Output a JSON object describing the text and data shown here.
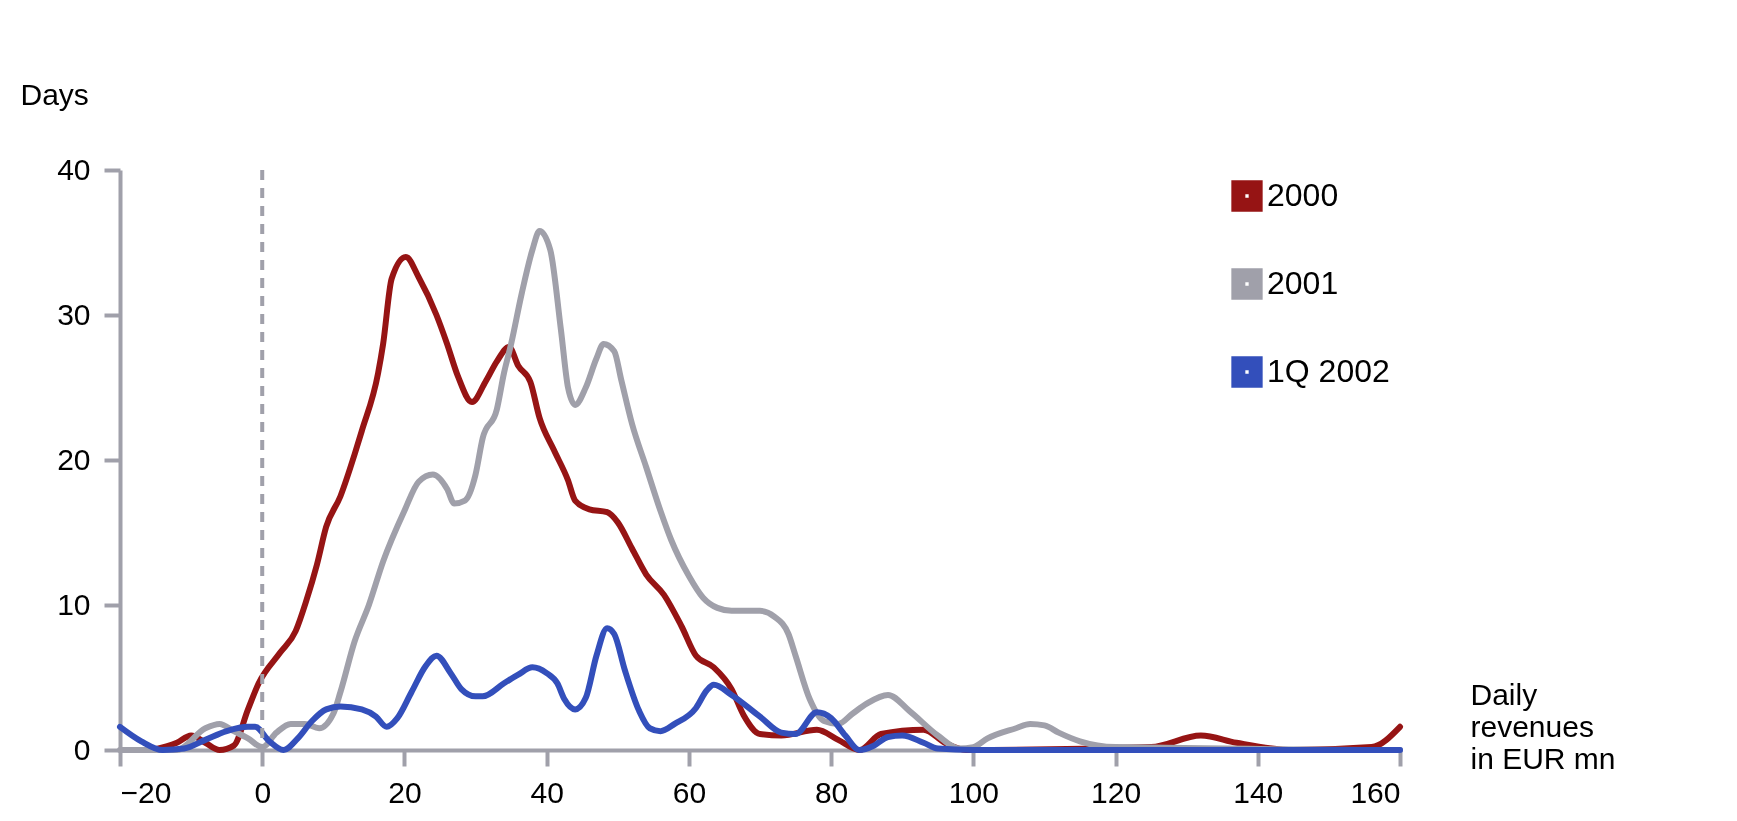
{
  "chart_data": {
    "type": "line",
    "ylabel": "Days",
    "xlabel": "Daily revenues in EUR mn",
    "xlim": [
      -20,
      160
    ],
    "xticks": [
      -20,
      0,
      20,
      40,
      60,
      80,
      100,
      120,
      140,
      160
    ],
    "ylim": [
      0,
      40
    ],
    "yticks": [
      0,
      10,
      20,
      30,
      40
    ],
    "grid": false,
    "legend": "top right",
    "marker": "none",
    "line_style": "solid",
    "ref_lines": [
      {
        "axis": "x",
        "value": 0,
        "color": "#a0a0aa",
        "line_style": "dashed"
      }
    ],
    "series": [
      {
        "name": "2000",
        "color": "#961414",
        "x": [
          -15.5,
          -12,
          -10,
          -8,
          -6,
          -4,
          -2,
          -0.5,
          2.5,
          4.7,
          6.2,
          7.7,
          9,
          11,
          13,
          14,
          16.3,
          17,
          18.2,
          20.2,
          22,
          24.5,
          26,
          27.5,
          29.5,
          31.4,
          33,
          34.7,
          36,
          37.7,
          39,
          41,
          43,
          44,
          46,
          48.5,
          50,
          52,
          54,
          56.5,
          59,
          61,
          63.5,
          66,
          67.7,
          70,
          73,
          78,
          81,
          84,
          87,
          93,
          96,
          99,
          125,
          132,
          137,
          145,
          156,
          160
        ],
        "values": [
          0,
          0.5,
          1,
          0.5,
          0,
          0.3,
          2.8,
          4.6,
          6.7,
          8.2,
          10.3,
          12.8,
          15.4,
          17.5,
          20.4,
          22,
          26,
          28,
          32.5,
          34,
          32.6,
          30,
          28,
          25.8,
          24,
          25.4,
          26.8,
          27.8,
          26.5,
          25.4,
          22.9,
          20.7,
          18.6,
          17.2,
          16.6,
          16.4,
          15.7,
          13.9,
          12.1,
          10.7,
          8.5,
          6.5,
          5.7,
          4.2,
          2.4,
          1.1,
          1,
          1.4,
          0.7,
          0,
          1.1,
          1.4,
          0.5,
          0,
          0.2,
          1,
          0.5,
          0,
          0.2,
          1.6
        ]
      },
      {
        "name": "2001",
        "color": "#a0a0aa",
        "x": [
          -20,
          -12,
          -8,
          -6,
          -4,
          -2,
          0,
          2,
          4,
          6,
          8,
          10,
          11,
          13,
          15,
          17,
          20,
          22,
          24,
          26,
          27,
          28.5,
          30,
          31,
          33,
          34,
          35,
          36.5,
          38,
          39,
          40.5,
          42,
          43,
          44,
          45.5,
          47,
          48,
          49.5,
          50.5,
          52,
          54,
          56,
          57.5,
          60,
          62,
          64,
          66,
          70,
          72,
          74,
          75,
          77,
          79,
          81,
          83,
          85,
          88,
          91,
          95,
          98,
          100,
          102,
          106,
          108,
          110,
          112,
          115,
          120,
          160
        ],
        "values": [
          0,
          0,
          1.5,
          1.8,
          1.3,
          0.8,
          0.2,
          1.2,
          1.8,
          1.8,
          1.5,
          2.5,
          4,
          7.5,
          10,
          13,
          16.5,
          18.5,
          19,
          18,
          17,
          17.2,
          19,
          21.5,
          23.5,
          26,
          28,
          31.5,
          34.5,
          35.8,
          34.5,
          29,
          25,
          23.8,
          25,
          27,
          28,
          27.5,
          25.5,
          22.5,
          19.5,
          16.5,
          14.5,
          12,
          10.5,
          9.8,
          9.6,
          9.6,
          9.2,
          8,
          6.5,
          3.5,
          2,
          1.8,
          2.5,
          3.2,
          3.8,
          2.7,
          1,
          0.1,
          0.2,
          0.8,
          1.5,
          1.8,
          1.7,
          1.2,
          0.6,
          0.2,
          0
        ]
      },
      {
        "name": "1Q 2002",
        "color": "#334fbb",
        "x": [
          -20,
          -17,
          -14,
          -11,
          -8,
          -5,
          -2,
          -1,
          1,
          3,
          5,
          7,
          9,
          11,
          14,
          16,
          17.5,
          19,
          21,
          23,
          24.5,
          26.5,
          28,
          30,
          31,
          34,
          36,
          38,
          40,
          41.5,
          42.5,
          44,
          45.5,
          47,
          48.5,
          49.5,
          51,
          53,
          54.5,
          56,
          58,
          61,
          62.5,
          63.5,
          66,
          70,
          73,
          75,
          78,
          80,
          82,
          84,
          86,
          88,
          90,
          93,
          95,
          100,
          160
        ],
        "values": [
          1.6,
          0.6,
          0,
          0.1,
          0.7,
          1.3,
          1.6,
          1.6,
          0.6,
          0,
          0.8,
          2,
          2.8,
          3,
          2.8,
          2.3,
          1.6,
          2.2,
          4,
          5.8,
          6.5,
          5.3,
          4.2,
          3.7,
          3.7,
          4.6,
          5.2,
          5.7,
          5.3,
          4.6,
          3.5,
          2.8,
          3.6,
          6.5,
          8.4,
          8,
          5.5,
          2.7,
          1.5,
          1.3,
          1.8,
          2.9,
          4.1,
          4.5,
          3.8,
          2.3,
          1.2,
          1.1,
          2.6,
          2.2,
          1,
          0,
          0.3,
          0.9,
          1,
          0.5,
          0.1,
          0,
          0
        ]
      }
    ]
  }
}
